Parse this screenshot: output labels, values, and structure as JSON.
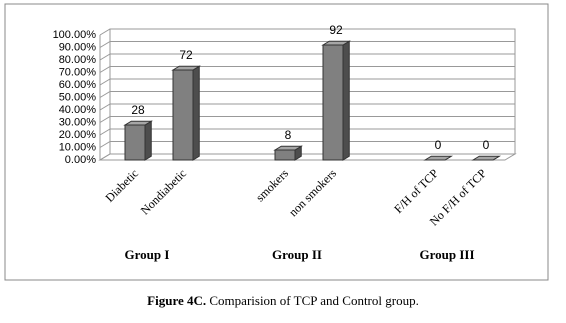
{
  "chart_data": {
    "type": "bar3d",
    "categories": [
      "Diabetic",
      "Nondiabetic",
      "smokers",
      "non smokers",
      "F/H of TCP",
      "No F/H of TCP"
    ],
    "values": [
      28,
      72,
      8,
      92,
      0,
      0
    ],
    "group_labels": [
      "Group I",
      "Group II",
      "Group III"
    ],
    "color": "#808080",
    "ylim": [
      0,
      100
    ],
    "yticks": [
      {
        "value": 0,
        "label": "0.00%"
      },
      {
        "value": 10,
        "label": "10.00%"
      },
      {
        "value": 20,
        "label": "20.00%"
      },
      {
        "value": 30,
        "label": "30.00%"
      },
      {
        "value": 40,
        "label": "40.00%"
      },
      {
        "value": 50,
        "label": "50.00%"
      },
      {
        "value": 60,
        "label": "60.00%"
      },
      {
        "value": 70,
        "label": "70.00%"
      },
      {
        "value": 80,
        "label": "80.00%"
      },
      {
        "value": 90,
        "label": "90.00%"
      },
      {
        "value": 100,
        "label": "100.00%"
      }
    ],
    "grid": true
  },
  "caption": {
    "label": "Figure 4C.",
    "text": "Comparision of TCP and Control group."
  }
}
